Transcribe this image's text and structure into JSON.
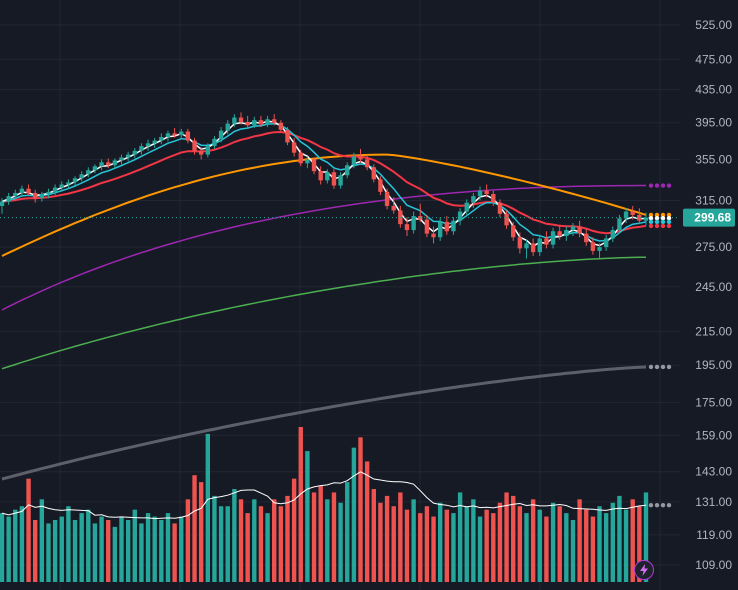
{
  "chart_data": {
    "type": "candlestick",
    "price_axis": {
      "ticks": [
        "525.00",
        "475.00",
        "435.00",
        "395.00",
        "355.00",
        "315.00",
        "275.00",
        "245.00",
        "215.00",
        "195.00",
        "175.00",
        "159.00",
        "143.00",
        "131.00",
        "119.00",
        "109.00"
      ],
      "log_scale": true
    },
    "last_price": "299.68",
    "last_price_color": "#26a69a",
    "colors": {
      "up": "#26a69a",
      "down": "#ef5350",
      "ema_fast": "#ffffff",
      "ema_mid": "#26c6da",
      "ema_slow": "#f23645",
      "ma_orange": "#ff9800",
      "ma_purple": "#9c27b0",
      "ma_green": "#4caf50",
      "ma_gray": "#5d606b",
      "volume_up": "#26a69a",
      "volume_down": "#ef5350",
      "volume_ma": "#ffffff",
      "background": "#161a25",
      "grid": "#232632"
    },
    "grid": true,
    "candles": [
      {
        "o": 310,
        "h": 317,
        "l": 303,
        "c": 314
      },
      {
        "o": 314,
        "h": 322,
        "l": 311,
        "c": 319
      },
      {
        "o": 319,
        "h": 325,
        "l": 315,
        "c": 322
      },
      {
        "o": 322,
        "h": 329,
        "l": 319,
        "c": 326
      },
      {
        "o": 326,
        "h": 330,
        "l": 320,
        "c": 322
      },
      {
        "o": 322,
        "h": 325,
        "l": 313,
        "c": 317
      },
      {
        "o": 317,
        "h": 323,
        "l": 314,
        "c": 321
      },
      {
        "o": 321,
        "h": 326,
        "l": 317,
        "c": 323
      },
      {
        "o": 323,
        "h": 330,
        "l": 320,
        "c": 327
      },
      {
        "o": 327,
        "h": 333,
        "l": 323,
        "c": 330
      },
      {
        "o": 330,
        "h": 335,
        "l": 326,
        "c": 332
      },
      {
        "o": 332,
        "h": 338,
        "l": 329,
        "c": 336
      },
      {
        "o": 336,
        "h": 343,
        "l": 333,
        "c": 340
      },
      {
        "o": 340,
        "h": 347,
        "l": 337,
        "c": 344
      },
      {
        "o": 344,
        "h": 350,
        "l": 341,
        "c": 348
      },
      {
        "o": 348,
        "h": 355,
        "l": 344,
        "c": 352
      },
      {
        "o": 352,
        "h": 356,
        "l": 346,
        "c": 349
      },
      {
        "o": 349,
        "h": 356,
        "l": 346,
        "c": 354
      },
      {
        "o": 354,
        "h": 360,
        "l": 350,
        "c": 357
      },
      {
        "o": 357,
        "h": 363,
        "l": 353,
        "c": 360
      },
      {
        "o": 360,
        "h": 367,
        "l": 356,
        "c": 364
      },
      {
        "o": 364,
        "h": 372,
        "l": 360,
        "c": 369
      },
      {
        "o": 369,
        "h": 376,
        "l": 364,
        "c": 372
      },
      {
        "o": 372,
        "h": 378,
        "l": 367,
        "c": 375
      },
      {
        "o": 375,
        "h": 383,
        "l": 371,
        "c": 379
      },
      {
        "o": 379,
        "h": 386,
        "l": 374,
        "c": 383
      },
      {
        "o": 383,
        "h": 389,
        "l": 378,
        "c": 381
      },
      {
        "o": 381,
        "h": 388,
        "l": 377,
        "c": 385
      },
      {
        "o": 385,
        "h": 388,
        "l": 372,
        "c": 375
      },
      {
        "o": 375,
        "h": 378,
        "l": 360,
        "c": 364
      },
      {
        "o": 364,
        "h": 368,
        "l": 355,
        "c": 360
      },
      {
        "o": 360,
        "h": 372,
        "l": 357,
        "c": 369
      },
      {
        "o": 369,
        "h": 380,
        "l": 366,
        "c": 377
      },
      {
        "o": 377,
        "h": 390,
        "l": 373,
        "c": 386
      },
      {
        "o": 386,
        "h": 398,
        "l": 382,
        "c": 394
      },
      {
        "o": 394,
        "h": 405,
        "l": 390,
        "c": 401
      },
      {
        "o": 401,
        "h": 407,
        "l": 393,
        "c": 396
      },
      {
        "o": 396,
        "h": 403,
        "l": 388,
        "c": 392
      },
      {
        "o": 392,
        "h": 402,
        "l": 389,
        "c": 398
      },
      {
        "o": 398,
        "h": 403,
        "l": 390,
        "c": 393
      },
      {
        "o": 393,
        "h": 403,
        "l": 390,
        "c": 399
      },
      {
        "o": 399,
        "h": 405,
        "l": 392,
        "c": 395
      },
      {
        "o": 395,
        "h": 398,
        "l": 384,
        "c": 387
      },
      {
        "o": 387,
        "h": 390,
        "l": 370,
        "c": 373
      },
      {
        "o": 373,
        "h": 378,
        "l": 358,
        "c": 362
      },
      {
        "o": 362,
        "h": 365,
        "l": 348,
        "c": 351
      },
      {
        "o": 351,
        "h": 358,
        "l": 346,
        "c": 355
      },
      {
        "o": 355,
        "h": 357,
        "l": 340,
        "c": 343
      },
      {
        "o": 343,
        "h": 348,
        "l": 330,
        "c": 334
      },
      {
        "o": 334,
        "h": 345,
        "l": 331,
        "c": 342
      },
      {
        "o": 342,
        "h": 345,
        "l": 326,
        "c": 329
      },
      {
        "o": 329,
        "h": 342,
        "l": 326,
        "c": 339
      },
      {
        "o": 339,
        "h": 352,
        "l": 336,
        "c": 349
      },
      {
        "o": 349,
        "h": 362,
        "l": 346,
        "c": 358
      },
      {
        "o": 358,
        "h": 366,
        "l": 352,
        "c": 355
      },
      {
        "o": 355,
        "h": 360,
        "l": 344,
        "c": 347
      },
      {
        "o": 347,
        "h": 350,
        "l": 332,
        "c": 335
      },
      {
        "o": 335,
        "h": 338,
        "l": 320,
        "c": 323
      },
      {
        "o": 323,
        "h": 326,
        "l": 307,
        "c": 310
      },
      {
        "o": 310,
        "h": 318,
        "l": 303,
        "c": 306
      },
      {
        "o": 306,
        "h": 310,
        "l": 291,
        "c": 294
      },
      {
        "o": 294,
        "h": 300,
        "l": 284,
        "c": 289
      },
      {
        "o": 289,
        "h": 305,
        "l": 286,
        "c": 301
      },
      {
        "o": 301,
        "h": 312,
        "l": 296,
        "c": 298
      },
      {
        "o": 298,
        "h": 302,
        "l": 283,
        "c": 286
      },
      {
        "o": 286,
        "h": 292,
        "l": 278,
        "c": 283
      },
      {
        "o": 283,
        "h": 300,
        "l": 280,
        "c": 296
      },
      {
        "o": 296,
        "h": 301,
        "l": 285,
        "c": 288
      },
      {
        "o": 288,
        "h": 300,
        "l": 285,
        "c": 297
      },
      {
        "o": 297,
        "h": 308,
        "l": 293,
        "c": 305
      },
      {
        "o": 305,
        "h": 316,
        "l": 301,
        "c": 313
      },
      {
        "o": 313,
        "h": 322,
        "l": 308,
        "c": 319
      },
      {
        "o": 319,
        "h": 328,
        "l": 315,
        "c": 324
      },
      {
        "o": 324,
        "h": 330,
        "l": 318,
        "c": 321
      },
      {
        "o": 321,
        "h": 324,
        "l": 310,
        "c": 313
      },
      {
        "o": 313,
        "h": 316,
        "l": 300,
        "c": 303
      },
      {
        "o": 303,
        "h": 306,
        "l": 290,
        "c": 293
      },
      {
        "o": 293,
        "h": 296,
        "l": 280,
        "c": 283
      },
      {
        "o": 283,
        "h": 287,
        "l": 270,
        "c": 274
      },
      {
        "o": 274,
        "h": 281,
        "l": 266,
        "c": 278
      },
      {
        "o": 278,
        "h": 282,
        "l": 268,
        "c": 271
      },
      {
        "o": 271,
        "h": 285,
        "l": 268,
        "c": 282
      },
      {
        "o": 282,
        "h": 288,
        "l": 274,
        "c": 277
      },
      {
        "o": 277,
        "h": 291,
        "l": 274,
        "c": 288
      },
      {
        "o": 288,
        "h": 293,
        "l": 281,
        "c": 284
      },
      {
        "o": 284,
        "h": 292,
        "l": 280,
        "c": 289
      },
      {
        "o": 289,
        "h": 295,
        "l": 284,
        "c": 292
      },
      {
        "o": 292,
        "h": 297,
        "l": 283,
        "c": 286
      },
      {
        "o": 286,
        "h": 290,
        "l": 276,
        "c": 279
      },
      {
        "o": 279,
        "h": 283,
        "l": 269,
        "c": 272
      },
      {
        "o": 272,
        "h": 278,
        "l": 266,
        "c": 275
      },
      {
        "o": 275,
        "h": 285,
        "l": 272,
        "c": 282
      },
      {
        "o": 282,
        "h": 292,
        "l": 279,
        "c": 289
      },
      {
        "o": 289,
        "h": 302,
        "l": 286,
        "c": 299
      },
      {
        "o": 299,
        "h": 308,
        "l": 295,
        "c": 305
      },
      {
        "o": 305,
        "h": 310,
        "l": 298,
        "c": 302
      },
      {
        "o": 302,
        "h": 308,
        "l": 294,
        "c": 297
      },
      {
        "o": 297,
        "h": 304,
        "l": 293,
        "c": 299.68
      }
    ],
    "volume": [
      20,
      19,
      21,
      22,
      30,
      18,
      24,
      17,
      18,
      19,
      22,
      18,
      20,
      21,
      17,
      19,
      18,
      16,
      19,
      18,
      21,
      17,
      20,
      19,
      18,
      20,
      17,
      19,
      24,
      31,
      29,
      43,
      25,
      22,
      22,
      27,
      24,
      20,
      24,
      22,
      20,
      24,
      22,
      25,
      30,
      45,
      38,
      26,
      28,
      24,
      26,
      23,
      29,
      39,
      42,
      35,
      27,
      23,
      25,
      22,
      26,
      21,
      24,
      20,
      22,
      19,
      23,
      21,
      20,
      26,
      22,
      24,
      19,
      21,
      20,
      23,
      26,
      25,
      22,
      20,
      24,
      21,
      19,
      23,
      22,
      20,
      18,
      24,
      21,
      19,
      22,
      20,
      23,
      25,
      21,
      24,
      22,
      26
    ],
    "overlay_lines": [
      "ema_fast",
      "ema_mid",
      "ema_slow",
      "ma_orange",
      "ma_purple",
      "ma_green",
      "ma_gray",
      "volume_ma"
    ]
  }
}
